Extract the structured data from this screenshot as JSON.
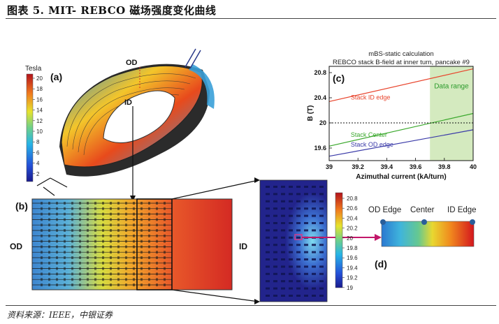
{
  "header": {
    "title": "图表 5. MIT- REBCO 磁场强度变化曲线"
  },
  "footer": {
    "source": "资料来源：IEEE，中银证券"
  },
  "colorbar_a": {
    "unit": "Tesla",
    "ticks": [
      "20",
      "18",
      "16",
      "14",
      "12",
      "10",
      "8",
      "6",
      "4",
      "2"
    ]
  },
  "panel_a": {
    "label": "(a)",
    "od": "OD",
    "id": "ID"
  },
  "panel_b": {
    "label": "(b)",
    "od": "OD",
    "id": "ID"
  },
  "colorbar_zoom": {
    "ticks": [
      "20.8",
      "20.6",
      "20.4",
      "20.2",
      "20",
      "19.8",
      "19.6",
      "19.4",
      "19.2",
      "19"
    ]
  },
  "panel_d": {
    "label": "(d)",
    "markers": [
      "OD Edge",
      "Center",
      "ID Edge"
    ]
  },
  "chart_data": {
    "type": "line",
    "panel_label": "(c)",
    "title": "mBS-static calculation",
    "subtitle": "REBCO stack B-field at inner turn, pancake #9",
    "xlabel": "Azimuthal current (kA/turn)",
    "ylabel": "B (T)",
    "xlim": [
      39,
      40
    ],
    "ylim": [
      19.4,
      20.9
    ],
    "xticks": [
      "39",
      "39.2",
      "39.4",
      "39.6",
      "39.8",
      "40"
    ],
    "yticks": [
      "20.8",
      "20.4",
      "20",
      "19.6"
    ],
    "reference_line": {
      "y": 20
    },
    "shaded_region": {
      "x_from": 39.7,
      "x_to": 40,
      "label": "Data range"
    },
    "series": [
      {
        "name": "Stack ID edge",
        "color": "#e8432b",
        "x": [
          39,
          40
        ],
        "y": [
          20.34,
          20.86
        ]
      },
      {
        "name": "Stack Center",
        "color": "#3aa82c",
        "x": [
          39,
          40
        ],
        "y": [
          19.63,
          20.15
        ]
      },
      {
        "name": "Stack OD edge",
        "color": "#3a3aa8",
        "x": [
          39,
          40
        ],
        "y": [
          19.47,
          19.89
        ]
      }
    ]
  }
}
